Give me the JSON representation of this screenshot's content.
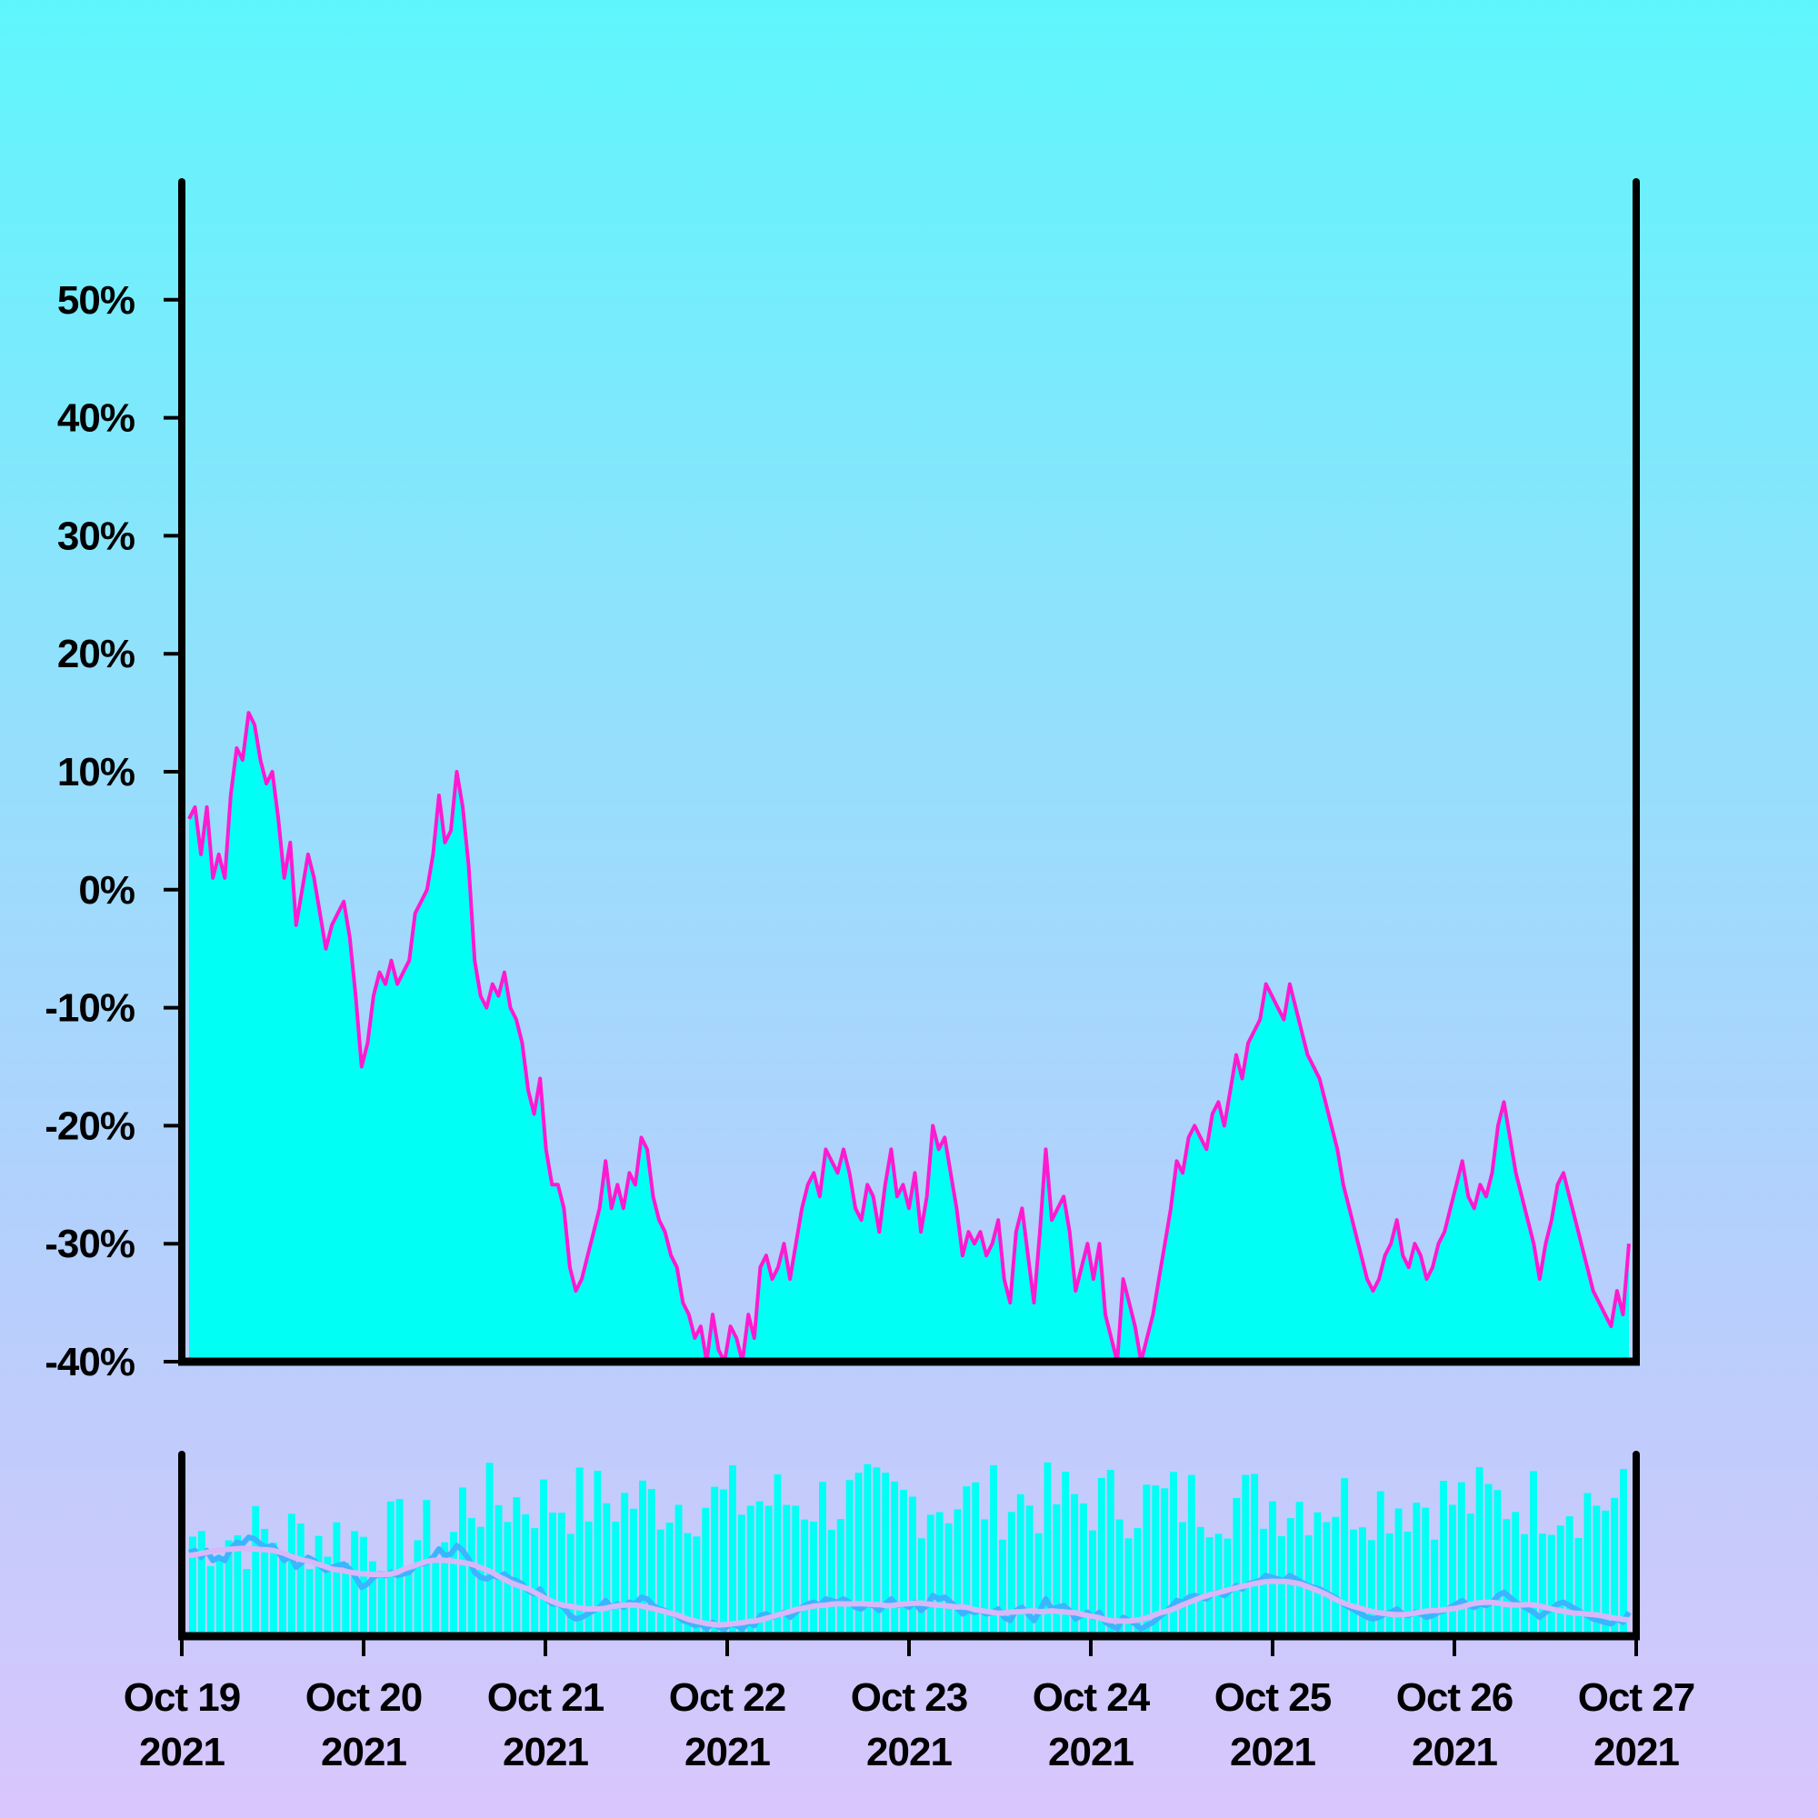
{
  "chart_data": [
    {
      "type": "area",
      "title": "",
      "xlabel": "",
      "ylabel": "",
      "x_range": [
        "2021-10-19",
        "2021-10-27"
      ],
      "ylim": [
        -40,
        60
      ],
      "y_ticks": [
        {
          "value": 50,
          "label": "50%"
        },
        {
          "value": 40,
          "label": "40%"
        },
        {
          "value": 30,
          "label": "30%"
        },
        {
          "value": 20,
          "label": "20%"
        },
        {
          "value": 10,
          "label": "10%"
        },
        {
          "value": 0,
          "label": "0%"
        },
        {
          "value": -10,
          "label": "-10%"
        },
        {
          "value": -20,
          "label": "-20%"
        },
        {
          "value": -30,
          "label": "-30%"
        },
        {
          "value": -40,
          "label": "-40%"
        }
      ],
      "grid": false,
      "colors": {
        "line": "#ff1ad1",
        "fill": "#00fff5"
      },
      "series": [
        {
          "x_start": "2021-10-19",
          "x_end": "2021-10-27",
          "values": [
            6,
            7,
            3,
            7,
            1,
            3,
            1,
            8,
            12,
            11,
            15,
            14,
            11,
            9,
            10,
            6,
            1,
            4,
            -3,
            0,
            3,
            1,
            -2,
            -5,
            -3,
            -2,
            -1,
            -4,
            -9,
            -15,
            -13,
            -9,
            -7,
            -8,
            -6,
            -8,
            -7,
            -6,
            -2,
            -1,
            0,
            3,
            8,
            4,
            5,
            10,
            7,
            2,
            -6,
            -9,
            -10,
            -8,
            -9,
            -7,
            -10,
            -11,
            -13,
            -17,
            -19,
            -16,
            -22,
            -25,
            -25,
            -27,
            -32,
            -34,
            -33,
            -31,
            -29,
            -27,
            -23,
            -27,
            -25,
            -27,
            -24,
            -25,
            -21,
            -22,
            -26,
            -28,
            -29,
            -31,
            -32,
            -35,
            -36,
            -38,
            -37,
            -40,
            -36,
            -39,
            -40,
            -37,
            -38,
            -40,
            -36,
            -38,
            -32,
            -31,
            -33,
            -32,
            -30,
            -33,
            -30,
            -27,
            -25,
            -24,
            -26,
            -22,
            -23,
            -24,
            -22,
            -24,
            -27,
            -28,
            -25,
            -26,
            -29,
            -25,
            -22,
            -26,
            -25,
            -27,
            -24,
            -29,
            -26,
            -20,
            -22,
            -21,
            -24,
            -27,
            -31,
            -29,
            -30,
            -29,
            -31,
            -30,
            -28,
            -33,
            -35,
            -29,
            -27,
            -31,
            -35,
            -29,
            -22,
            -28,
            -27,
            -26,
            -29,
            -34,
            -32,
            -30,
            -33,
            -30,
            -36,
            -38,
            -40,
            -33,
            -35,
            -37,
            -40,
            -38,
            -36,
            -33,
            -30,
            -27,
            -23,
            -24,
            -21,
            -20,
            -21,
            -22,
            -19,
            -18,
            -20,
            -17,
            -14,
            -16,
            -13,
            -12,
            -11,
            -8,
            -9,
            -10,
            -11,
            -8,
            -10,
            -12,
            -14,
            -15,
            -16,
            -18,
            -20,
            -22,
            -25,
            -27,
            -29,
            -31,
            -33,
            -34,
            -33,
            -31,
            -30,
            -28,
            -31,
            -32,
            -30,
            -31,
            -33,
            -32,
            -30,
            -29,
            -27,
            -25,
            -23,
            -26,
            -27,
            -25,
            -26,
            -24,
            -20,
            -18,
            -21,
            -24,
            -26,
            -28,
            -30,
            -33,
            -30,
            -28,
            -25,
            -24,
            -26,
            -28,
            -30,
            -32,
            -34,
            -35,
            -36,
            -37,
            -34,
            -36,
            -30
          ]
        }
      ]
    },
    {
      "type": "bar",
      "title": "",
      "xlabel": "",
      "ylabel": "",
      "x_ticks": [
        {
          "date": "2021-10-19",
          "label": "Oct 19",
          "year": "2021"
        },
        {
          "date": "2021-10-20",
          "label": "Oct 20",
          "year": "2021"
        },
        {
          "date": "2021-10-21",
          "label": "Oct 21",
          "year": "2021"
        },
        {
          "date": "2021-10-22",
          "label": "Oct 22",
          "year": "2021"
        },
        {
          "date": "2021-10-23",
          "label": "Oct 23",
          "year": "2021"
        },
        {
          "date": "2021-10-24",
          "label": "Oct 24",
          "year": "2021"
        },
        {
          "date": "2021-10-25",
          "label": "Oct 25",
          "year": "2021"
        },
        {
          "date": "2021-10-26",
          "label": "Oct 26",
          "year": "2021"
        },
        {
          "date": "2021-10-27",
          "label": "Oct 27",
          "year": "2021"
        }
      ],
      "grid": false,
      "colors": {
        "bars": "#00fff5",
        "overview_line": "#3cb4ff",
        "overview_smooth": "#d8b8f8"
      },
      "bar_count": 160,
      "bar_value_range": [
        0.2,
        1.0
      ]
    }
  ]
}
